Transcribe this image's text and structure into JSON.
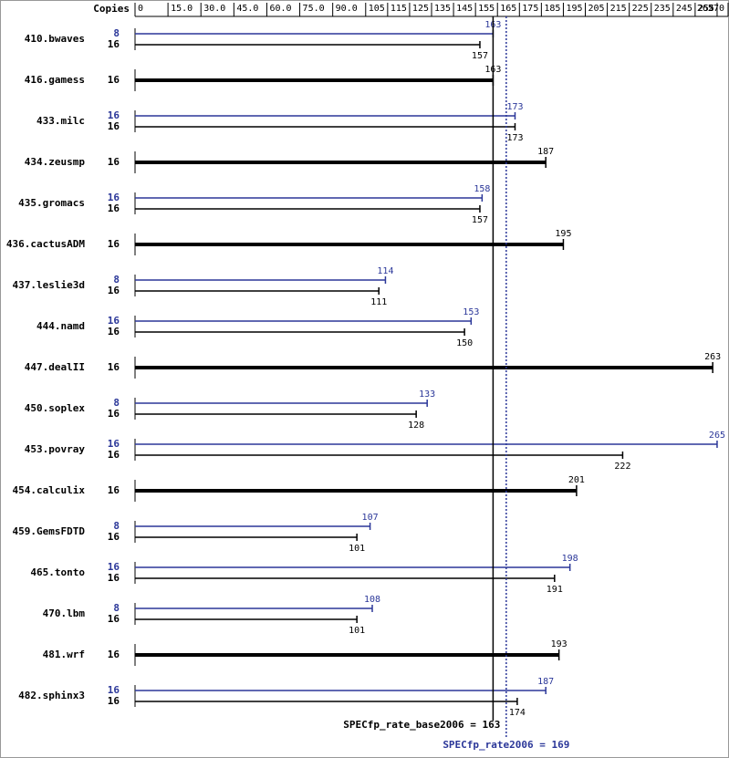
{
  "chart_data": {
    "type": "spec-bar",
    "copies_header": "Copies",
    "xlim": [
      0,
      270
    ],
    "xticks": [
      0,
      {
        "value": 15,
        "label": "15.0"
      },
      {
        "value": 30,
        "label": "30.0"
      },
      {
        "value": 45,
        "label": "45.0"
      },
      {
        "value": 60,
        "label": "60.0"
      },
      {
        "value": 75,
        "label": "75.0"
      },
      {
        "value": 90,
        "label": "90.0"
      },
      105,
      115,
      125,
      135,
      145,
      155,
      165,
      175,
      185,
      195,
      205,
      215,
      225,
      235,
      245,
      255,
      265,
      270
    ],
    "categories": [
      "410.bwaves",
      "416.gamess",
      "433.milc",
      "434.zeusmp",
      "435.gromacs",
      "436.cactusADM",
      "437.leslie3d",
      "444.namd",
      "447.dealII",
      "450.soplex",
      "453.povray",
      "454.calculix",
      "459.GemsFDTD",
      "465.tonto",
      "470.lbm",
      "481.wrf",
      "482.sphinx3"
    ],
    "peak": {
      "color": "#2b3799",
      "copies": [
        8,
        null,
        16,
        null,
        16,
        null,
        8,
        16,
        null,
        8,
        16,
        null,
        8,
        16,
        8,
        null,
        16
      ],
      "values": [
        163,
        null,
        173,
        null,
        158,
        null,
        114,
        153,
        null,
        133,
        265,
        null,
        107,
        198,
        108,
        null,
        187
      ]
    },
    "base": {
      "color": "#000000",
      "copies": [
        16,
        16,
        16,
        16,
        16,
        16,
        16,
        16,
        16,
        16,
        16,
        16,
        16,
        16,
        16,
        16,
        16
      ],
      "values": [
        157,
        163,
        173,
        187,
        157,
        195,
        111,
        150,
        263,
        128,
        222,
        201,
        101,
        191,
        101,
        193,
        174
      ]
    },
    "base_summary": {
      "label": "SPECfp_rate_base2006 = 163",
      "value": 163,
      "color": "#000000"
    },
    "peak_summary": {
      "label": "SPECfp_rate2006 = 169",
      "value": 169,
      "color": "#2b3799"
    }
  }
}
